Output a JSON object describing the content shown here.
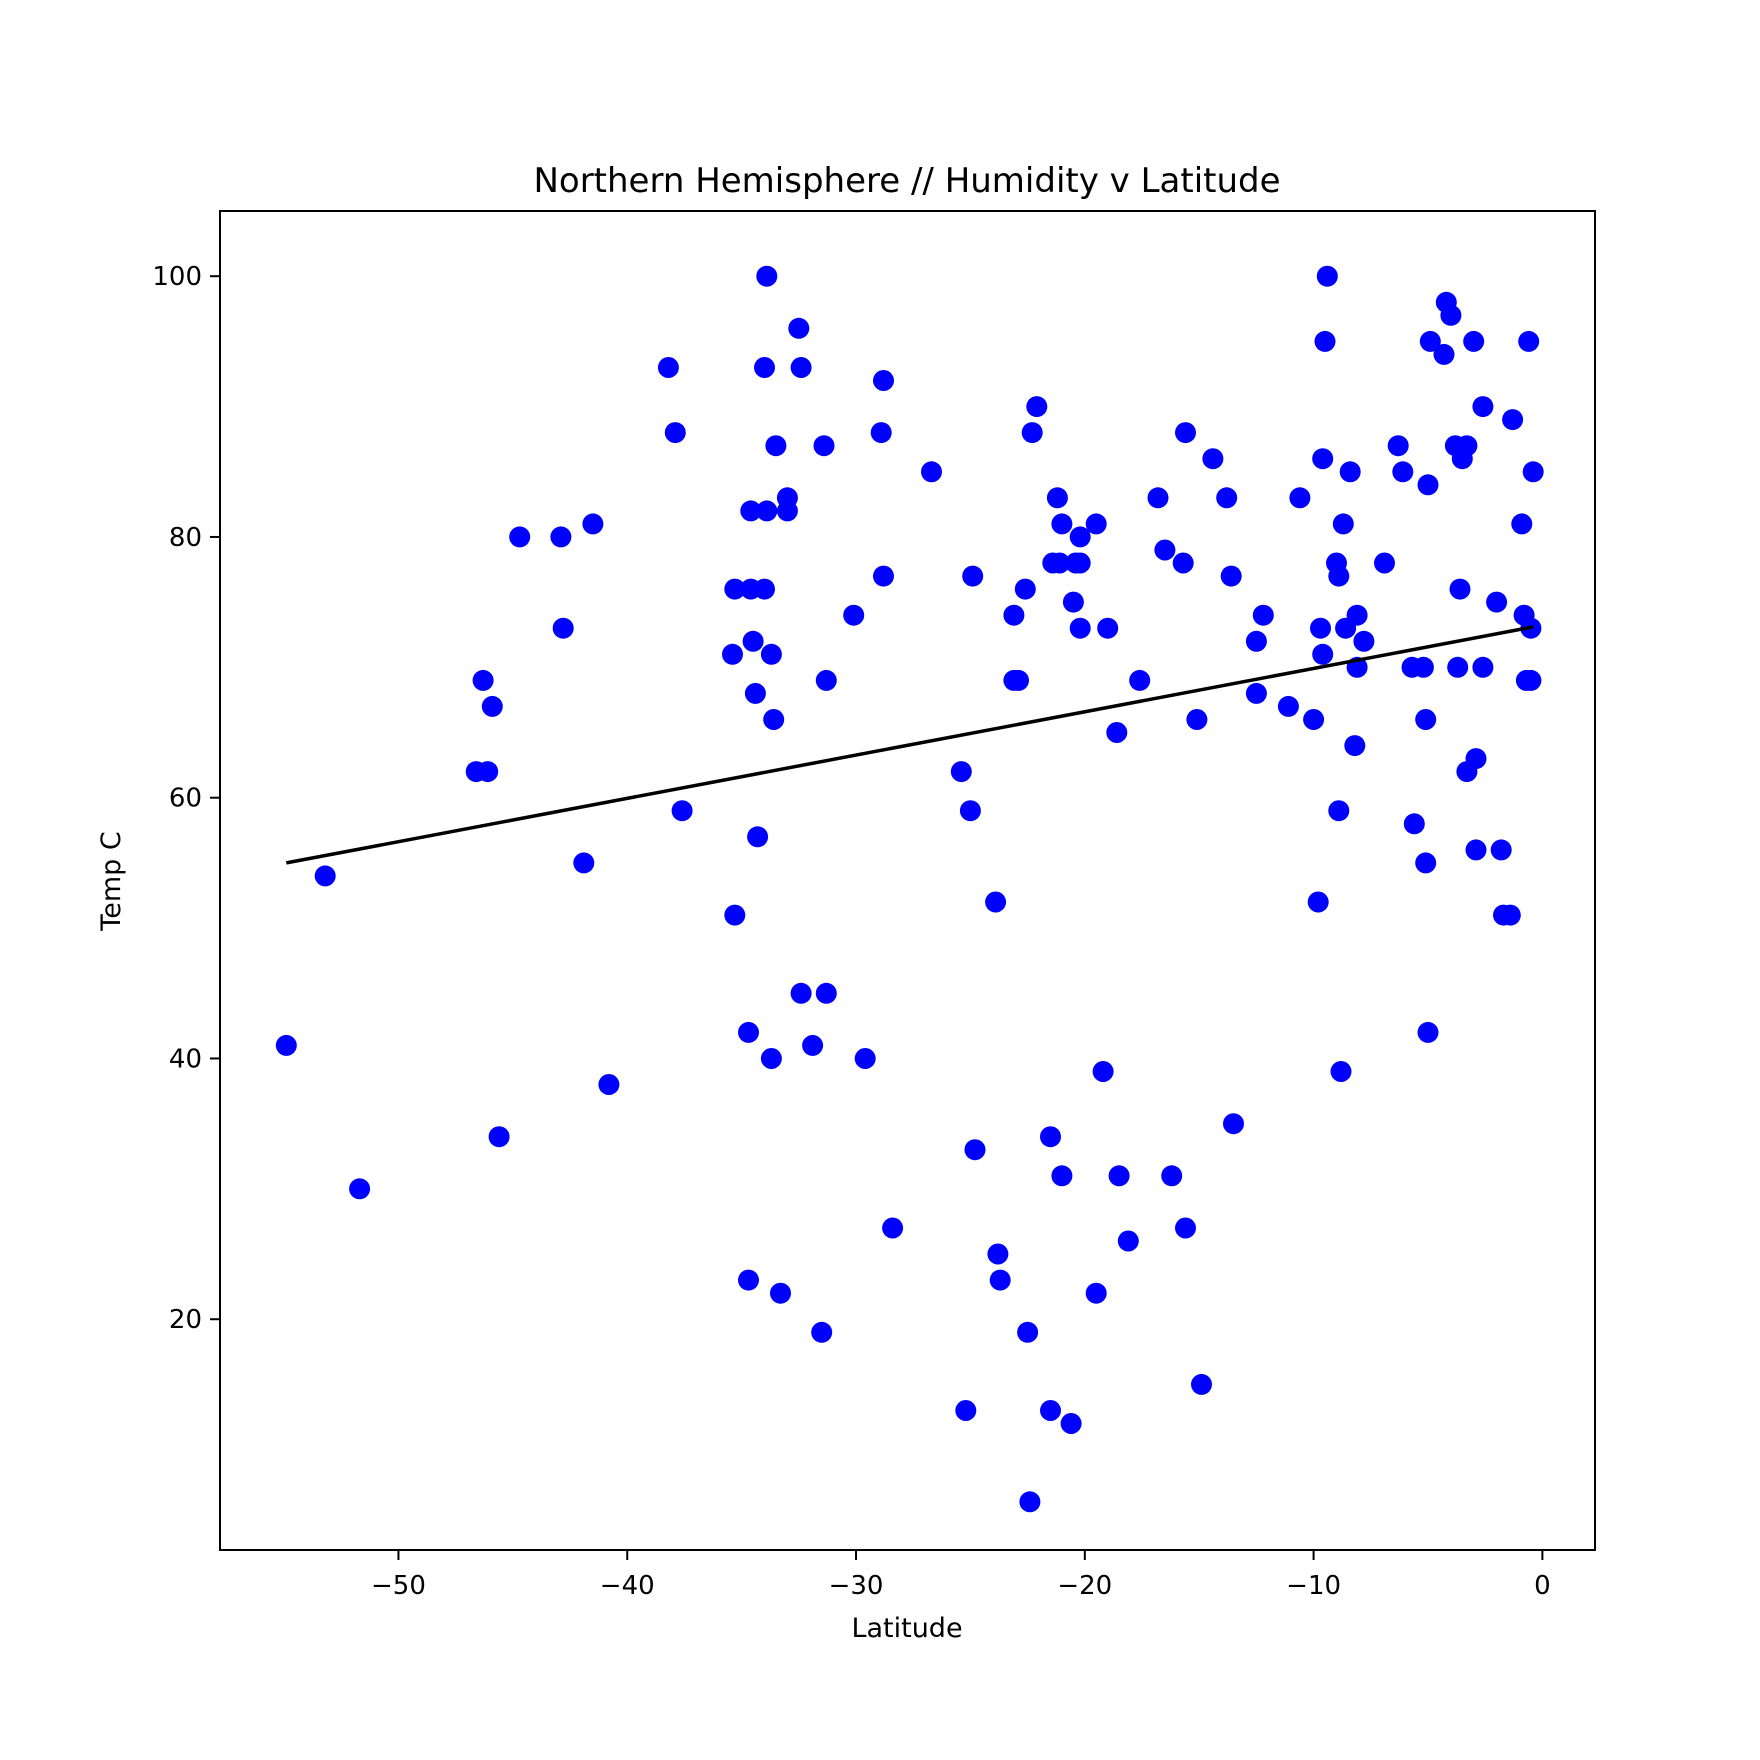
{
  "chart_data": {
    "type": "scatter",
    "title": "Northern Hemisphere // Humidity v Latitude",
    "xlabel": "Latitude",
    "ylabel": "Temp C",
    "xlim": [
      -57.8,
      2.3
    ],
    "ylim": [
      2.3,
      105
    ],
    "xticks": [
      -50,
      -40,
      -30,
      -20,
      -10,
      0
    ],
    "xtick_labels": [
      "−50",
      "−40",
      "−30",
      "−20",
      "−10",
      "0"
    ],
    "yticks": [
      20,
      40,
      60,
      80,
      100
    ],
    "ytick_labels": [
      "20",
      "40",
      "60",
      "80",
      "100"
    ],
    "grid": false,
    "point_color": "#0000ff",
    "line_color": "#000000",
    "series": [
      {
        "points": [
          [
            -54.9,
            41
          ],
          [
            -53.2,
            54
          ],
          [
            -51.7,
            30
          ],
          [
            -46.6,
            62
          ],
          [
            -46.3,
            69
          ],
          [
            -46.1,
            62
          ],
          [
            -45.9,
            67
          ],
          [
            -45.6,
            34
          ],
          [
            -44.7,
            80
          ],
          [
            -42.9,
            80
          ],
          [
            -42.8,
            73
          ],
          [
            -41.9,
            55
          ],
          [
            -41.5,
            81
          ],
          [
            -40.8,
            38
          ],
          [
            -38.2,
            93
          ],
          [
            -37.9,
            88
          ],
          [
            -37.6,
            59
          ],
          [
            -35.3,
            51
          ],
          [
            -35.4,
            71
          ],
          [
            -35.3,
            76
          ],
          [
            -34.7,
            42
          ],
          [
            -34.7,
            23
          ],
          [
            -34.6,
            76
          ],
          [
            -34.6,
            82
          ],
          [
            -34.5,
            72
          ],
          [
            -34.4,
            68
          ],
          [
            -34.3,
            57
          ],
          [
            -33.9,
            100
          ],
          [
            -34.0,
            93
          ],
          [
            -33.9,
            82
          ],
          [
            -34.0,
            76
          ],
          [
            -33.7,
            71
          ],
          [
            -33.7,
            40
          ],
          [
            -33.6,
            66
          ],
          [
            -33.5,
            87
          ],
          [
            -33.3,
            22
          ],
          [
            -33.0,
            83
          ],
          [
            -33.0,
            82
          ],
          [
            -32.5,
            96
          ],
          [
            -32.4,
            93
          ],
          [
            -32.4,
            45
          ],
          [
            -31.9,
            41
          ],
          [
            -31.4,
            87
          ],
          [
            -31.3,
            69
          ],
          [
            -31.3,
            45
          ],
          [
            -31.5,
            19
          ],
          [
            -30.1,
            74
          ],
          [
            -29.6,
            40
          ],
          [
            -28.8,
            92
          ],
          [
            -28.9,
            88
          ],
          [
            -28.8,
            77
          ],
          [
            -28.4,
            27
          ],
          [
            -26.7,
            85
          ],
          [
            -25.4,
            62
          ],
          [
            -25.2,
            13
          ],
          [
            -25.0,
            59
          ],
          [
            -24.9,
            77
          ],
          [
            -24.8,
            33
          ],
          [
            -23.9,
            52
          ],
          [
            -23.8,
            25
          ],
          [
            -23.7,
            23
          ],
          [
            -23.1,
            74
          ],
          [
            -23.1,
            69
          ],
          [
            -22.9,
            69
          ],
          [
            -22.6,
            76
          ],
          [
            -22.5,
            19
          ],
          [
            -22.4,
            6
          ],
          [
            -22.3,
            88
          ],
          [
            -22.1,
            90
          ],
          [
            -21.5,
            34
          ],
          [
            -21.5,
            13
          ],
          [
            -21.4,
            78
          ],
          [
            -21.2,
            83
          ],
          [
            -21.1,
            78
          ],
          [
            -21.0,
            81
          ],
          [
            -21.0,
            31
          ],
          [
            -20.6,
            12
          ],
          [
            -20.5,
            75
          ],
          [
            -20.4,
            78
          ],
          [
            -20.2,
            80
          ],
          [
            -20.2,
            78
          ],
          [
            -20.2,
            73
          ],
          [
            -19.5,
            81
          ],
          [
            -19.5,
            22
          ],
          [
            -19.2,
            39
          ],
          [
            -19.0,
            73
          ],
          [
            -18.6,
            65
          ],
          [
            -18.5,
            31
          ],
          [
            -18.1,
            26
          ],
          [
            -17.6,
            69
          ],
          [
            -16.8,
            83
          ],
          [
            -16.5,
            79
          ],
          [
            -16.2,
            31
          ],
          [
            -15.7,
            78
          ],
          [
            -15.6,
            88
          ],
          [
            -15.6,
            27
          ],
          [
            -15.1,
            66
          ],
          [
            -14.9,
            15
          ],
          [
            -14.4,
            86
          ],
          [
            -13.8,
            83
          ],
          [
            -13.6,
            77
          ],
          [
            -13.5,
            35
          ],
          [
            -12.5,
            72
          ],
          [
            -12.5,
            68
          ],
          [
            -12.2,
            74
          ],
          [
            -11.1,
            67
          ],
          [
            -10.6,
            83
          ],
          [
            -10.0,
            66
          ],
          [
            -9.8,
            52
          ],
          [
            -9.7,
            73
          ],
          [
            -9.6,
            86
          ],
          [
            -9.6,
            71
          ],
          [
            -9.5,
            95
          ],
          [
            -9.4,
            100
          ],
          [
            -9.0,
            78
          ],
          [
            -8.9,
            77
          ],
          [
            -8.9,
            59
          ],
          [
            -8.8,
            39
          ],
          [
            -8.7,
            81
          ],
          [
            -8.6,
            73
          ],
          [
            -8.4,
            85
          ],
          [
            -8.2,
            64
          ],
          [
            -8.1,
            74
          ],
          [
            -8.1,
            70
          ],
          [
            -7.8,
            72
          ],
          [
            -6.9,
            78
          ],
          [
            -6.3,
            87
          ],
          [
            -6.1,
            85
          ],
          [
            -5.7,
            70
          ],
          [
            -5.6,
            58
          ],
          [
            -5.2,
            70
          ],
          [
            -5.1,
            66
          ],
          [
            -5.1,
            55
          ],
          [
            -5.0,
            84
          ],
          [
            -5.0,
            42
          ],
          [
            -4.9,
            95
          ],
          [
            -4.3,
            94
          ],
          [
            -4.2,
            98
          ],
          [
            -4.0,
            97
          ],
          [
            -3.8,
            87
          ],
          [
            -3.7,
            70
          ],
          [
            -3.6,
            76
          ],
          [
            -3.5,
            86
          ],
          [
            -3.3,
            87
          ],
          [
            -3.3,
            62
          ],
          [
            -3.0,
            95
          ],
          [
            -2.9,
            63
          ],
          [
            -2.9,
            56
          ],
          [
            -2.6,
            90
          ],
          [
            -2.6,
            70
          ],
          [
            -2.0,
            75
          ],
          [
            -1.8,
            56
          ],
          [
            -1.7,
            51
          ],
          [
            -1.4,
            51
          ],
          [
            -1.3,
            89
          ],
          [
            -0.9,
            81
          ],
          [
            -0.8,
            74
          ],
          [
            -0.7,
            69
          ],
          [
            -0.6,
            95
          ],
          [
            -0.5,
            73
          ],
          [
            -0.5,
            69
          ],
          [
            -0.4,
            85
          ]
        ]
      }
    ],
    "regression": {
      "x": [
        -54.9,
        -0.4
      ],
      "y": [
        55.0,
        73.1
      ]
    }
  }
}
